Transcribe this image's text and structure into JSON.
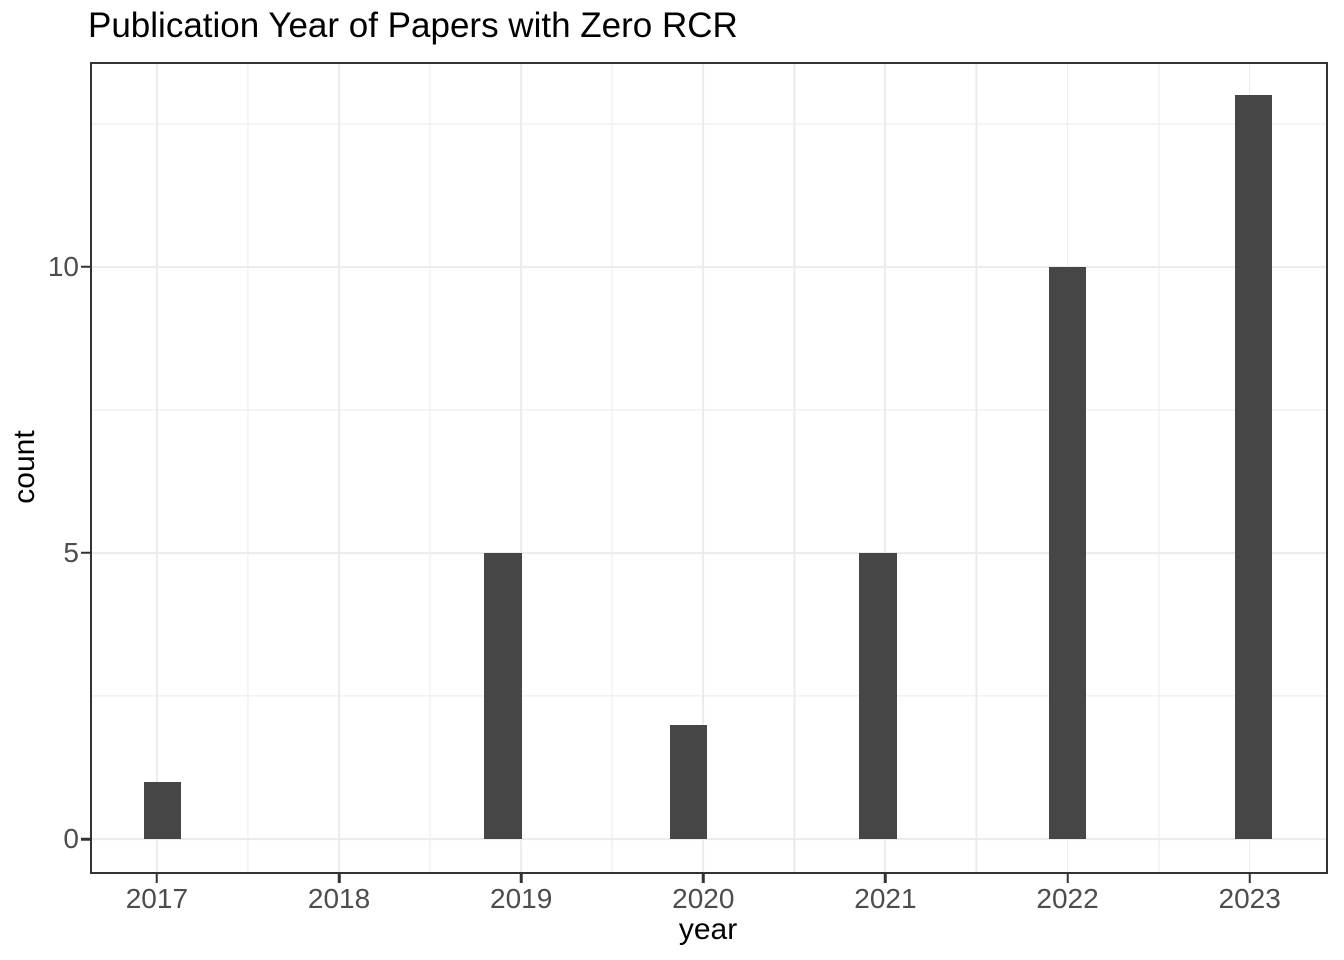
{
  "chart_data": {
    "type": "bar",
    "title": "Publication Year of Papers with Zero RCR",
    "xlabel": "year",
    "ylabel": "count",
    "categories": [
      "2017",
      "2018",
      "2019",
      "2020",
      "2021",
      "2022",
      "2023"
    ],
    "values": [
      1,
      0,
      5,
      2,
      5,
      10,
      13
    ],
    "bars": [
      {
        "year": "2017",
        "center": 2017.03,
        "count": 1
      },
      {
        "year": "2019",
        "center": 2018.9,
        "count": 5
      },
      {
        "year": "2020",
        "center": 2019.92,
        "count": 2
      },
      {
        "year": "2021",
        "center": 2020.96,
        "count": 5
      },
      {
        "year": "2022",
        "center": 2022.0,
        "count": 10
      },
      {
        "year": "2023",
        "center": 2023.02,
        "count": 13
      }
    ],
    "bar_width_years": 0.205,
    "x_ticks": [
      2017,
      2018,
      2019,
      2020,
      2021,
      2022,
      2023
    ],
    "x_tick_labels": [
      "2017",
      "2018",
      "2019",
      "2020",
      "2021",
      "2022",
      "2023"
    ],
    "x_minor_gridlines": [
      2017.5,
      2018.5,
      2019.5,
      2020.5,
      2021.5,
      2022.5
    ],
    "y_ticks": [
      0,
      5,
      10
    ],
    "y_tick_labels": [
      "0",
      "5",
      "10"
    ],
    "y_minor_gridlines": [
      2.5,
      7.5,
      12.5
    ],
    "xlim": [
      2016.63,
      2023.43
    ],
    "ylim": [
      -0.61,
      13.58
    ],
    "grid": true,
    "legend": false,
    "colors": {
      "bar_fill": "#464646",
      "gridline": "#ebebeb",
      "panel_border": "#333333",
      "tick_mark": "#333333",
      "axis_text": "#4d4d4d",
      "title_text": "#000000",
      "background": "#ffffff"
    }
  }
}
